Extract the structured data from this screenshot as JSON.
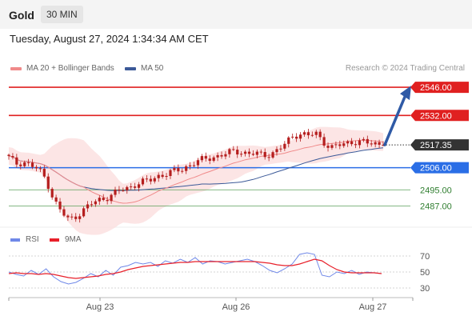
{
  "header": {
    "asset": "Gold",
    "timeframe": "30 MIN"
  },
  "datetime": "Tuesday, August 27, 2024 1:34:34 AM CET",
  "legend": [
    {
      "label": "MA 20 + Bollinger Bands",
      "color": "#f08a8a"
    },
    {
      "label": "MA 50",
      "color": "#3b5998"
    }
  ],
  "credit": "Research © 2024 Trading Central",
  "rsi_legend": [
    {
      "label": "RSI",
      "color": "#6f88e8"
    },
    {
      "label": "9MA",
      "color": "#e8202a"
    }
  ],
  "colors": {
    "resistance": "#e02020",
    "support_primary": "#2a6ee6",
    "support_secondary": "#5aa05a",
    "arrow": "#2f5aa6",
    "candle": "#b51e1e",
    "last_price_tag": "#333333"
  },
  "chart_data": [
    {
      "type": "candlestick",
      "title": "Gold 30 MIN",
      "x_ticks": [
        "Aug 23",
        "Aug 26",
        "Aug 27"
      ],
      "ylim": [
        2478,
        2552
      ],
      "close_path": [
        2511,
        2508,
        2509,
        2507,
        2505,
        2500,
        2490,
        2484,
        2480,
        2482,
        2485,
        2488,
        2490,
        2491,
        2493,
        2495,
        2496,
        2498,
        2499,
        2500,
        2502,
        2503,
        2504,
        2505,
        2507,
        2509,
        2510,
        2511,
        2512,
        2513,
        2514,
        2514,
        2513,
        2513,
        2512,
        2513,
        2515,
        2518,
        2522,
        2523,
        2522,
        2523,
        2519,
        2516,
        2517,
        2518,
        2519,
        2519,
        2518,
        2518,
        2517.35
      ],
      "levels": [
        {
          "value": 2546.0,
          "label": "2546.00",
          "kind": "resistance"
        },
        {
          "value": 2532.0,
          "label": "2532.00",
          "kind": "resistance"
        },
        {
          "value": 2517.35,
          "label": "2517.35",
          "kind": "last"
        },
        {
          "value": 2506.0,
          "label": "2506.00",
          "kind": "support"
        },
        {
          "value": 2495.0,
          "label": "2495.00",
          "kind": "support-minor"
        },
        {
          "value": 2487.0,
          "label": "2487.00",
          "kind": "support-minor"
        }
      ],
      "series": [
        {
          "name": "MA 20 + Bollinger Bands"
        },
        {
          "name": "MA 50"
        }
      ],
      "projection": {
        "from": 2517.35,
        "to": 2546.0
      }
    },
    {
      "type": "line",
      "title": "RSI",
      "yticks": [
        70,
        50,
        30
      ],
      "ylim": [
        20,
        80
      ],
      "series": [
        {
          "name": "RSI",
          "values": [
            50,
            47,
            45,
            52,
            47,
            54,
            44,
            38,
            35,
            37,
            42,
            48,
            44,
            52,
            46,
            56,
            58,
            62,
            60,
            62,
            57,
            64,
            61,
            66,
            62,
            68,
            60,
            64,
            63,
            60,
            62,
            64,
            66,
            63,
            58,
            52,
            49,
            54,
            60,
            72,
            74,
            72,
            46,
            44,
            50,
            48,
            52,
            47,
            50,
            49,
            48
          ]
        },
        {
          "name": "9MA",
          "values": [
            48,
            49,
            48,
            48,
            47,
            48,
            47,
            45,
            43,
            42,
            43,
            44,
            45,
            47,
            48,
            50,
            53,
            55,
            57,
            58,
            59,
            60,
            61,
            62,
            62,
            63,
            63,
            63,
            63,
            63,
            63,
            63,
            63,
            63,
            62,
            61,
            59,
            58,
            58,
            60,
            63,
            66,
            64,
            58,
            53,
            50,
            49,
            49,
            49,
            49,
            48
          ]
        }
      ]
    }
  ]
}
